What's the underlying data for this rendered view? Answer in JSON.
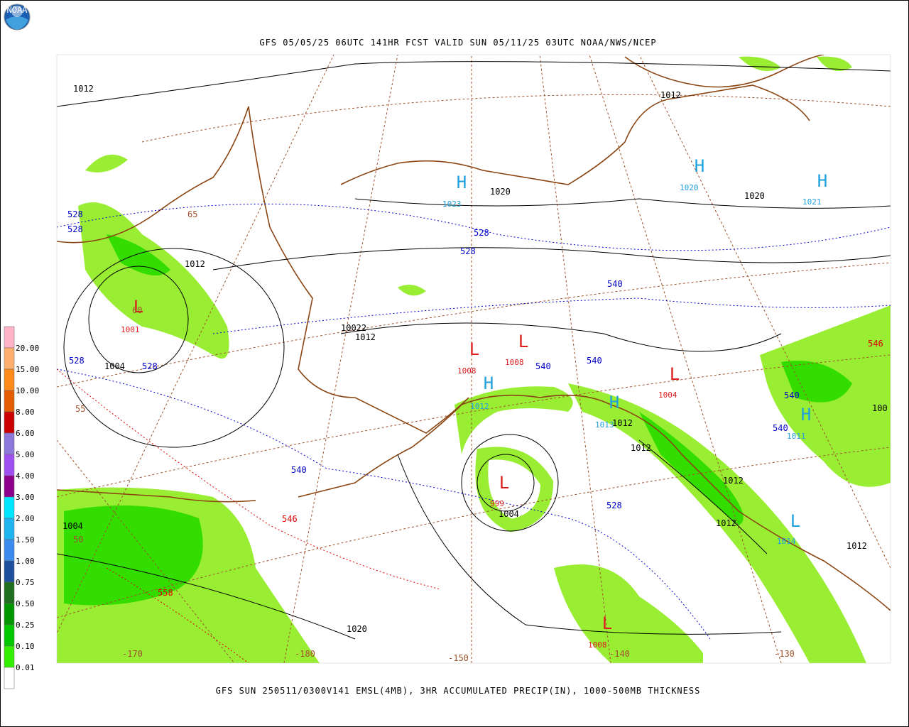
{
  "header": {
    "title": "GFS 05/05/25 06UTC 141HR FCST VALID SUN 05/11/25 03UTC NOAA/NWS/NCEP",
    "logo": "NOAA"
  },
  "footer": {
    "caption": "GFS SUN 250511/0300V141 EMSL(4MB), 3HR ACCUMULATED PRECIP(IN), 1000-500MB THICKNESS"
  },
  "legend": {
    "labels": [
      "20.00",
      "15.00",
      "10.00",
      "8.00",
      "6.00",
      "5.00",
      "4.00",
      "3.00",
      "2.00",
      "1.50",
      "1.00",
      "0.75",
      "0.50",
      "0.25",
      "0.10",
      "0.01"
    ],
    "colors": [
      "#ffb4c8",
      "#ffb070",
      "#ff8c1a",
      "#e65c00",
      "#cc0000",
      "#8c78d8",
      "#a050f0",
      "#8c008c",
      "#00e6ff",
      "#1eb4f0",
      "#3c8cf0",
      "#1e4f9c",
      "#1e6e1e",
      "#009600",
      "#00c800",
      "#32f000",
      "#ffffff"
    ]
  },
  "centers": [
    {
      "symbol": "H",
      "value": "1023",
      "color": "#1ea0dc"
    },
    {
      "symbol": "H",
      "value": "1020",
      "color": "#1ea0dc"
    },
    {
      "symbol": "H",
      "value": "1021",
      "color": "#1ea0dc"
    },
    {
      "symbol": "H",
      "value": "1011",
      "color": "#1ea0dc"
    },
    {
      "symbol": "H",
      "value": "1013",
      "color": "#1ea0dc"
    },
    {
      "symbol": "H",
      "value": "1012",
      "color": "#1ea0dc"
    },
    {
      "symbol": "L",
      "value": "1014",
      "color": "#1ea0dc"
    },
    {
      "symbol": "L",
      "value": "1001",
      "color": "#dc1e1e"
    },
    {
      "symbol": "L",
      "value": "1008",
      "color": "#dc1e1e"
    },
    {
      "symbol": "L",
      "value": "1008",
      "color": "#dc1e1e"
    },
    {
      "symbol": "L",
      "value": "1004",
      "color": "#dc1e1e"
    },
    {
      "symbol": "L",
      "value": "999",
      "color": "#dc1e1e"
    },
    {
      "symbol": "L",
      "value": "1008",
      "color": "#dc1e1e"
    }
  ],
  "isobar_labels": [
    "1012",
    "1012",
    "1020",
    "1020",
    "1012",
    "1004",
    "10022",
    "1012",
    "1012",
    "1012",
    "1012",
    "1012",
    "1004",
    "1004",
    "1020",
    "1012",
    "100"
  ],
  "thickness_labels": [
    {
      "text": "528",
      "color": "#0000c8"
    },
    {
      "text": "528",
      "color": "#0000c8"
    },
    {
      "text": "528",
      "color": "#0000c8"
    },
    {
      "text": "528",
      "color": "#0000c8"
    },
    {
      "text": "540",
      "color": "#0000c8"
    },
    {
      "text": "528",
      "color": "#0000c8"
    },
    {
      "text": "528",
      "color": "#0000c8"
    },
    {
      "text": "540",
      "color": "#0000c8"
    },
    {
      "text": "540",
      "color": "#0000c8"
    },
    {
      "text": "540",
      "color": "#0000c8"
    },
    {
      "text": "540",
      "color": "#0000c8"
    },
    {
      "text": "540",
      "color": "#0000c8"
    },
    {
      "text": "528",
      "color": "#0000c8"
    },
    {
      "text": "546",
      "color": "#dc0000"
    },
    {
      "text": "546",
      "color": "#dc0000"
    },
    {
      "text": "558",
      "color": "#dc0000"
    }
  ],
  "graticule_labels": [
    "60",
    "55",
    "50",
    "65",
    "-170",
    "-180",
    "-150",
    "-140",
    "-130"
  ]
}
